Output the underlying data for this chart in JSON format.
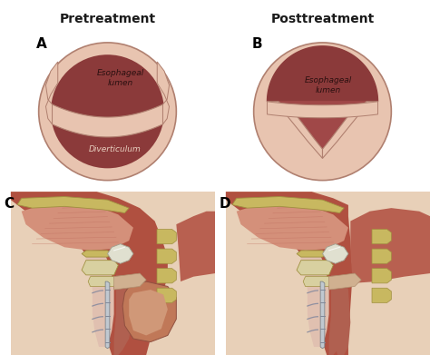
{
  "title_left": "Pretreatment",
  "title_right": "Posttreatment",
  "label_A": "A",
  "label_B": "B",
  "label_C": "C",
  "label_D": "D",
  "text_esophageal_lumen_A": "Esophageal\nlumen",
  "text_diverticulum": "Diverticulum",
  "text_esophageal_lumen_B": "Esophageal\nlumen",
  "bg_color": "#ffffff",
  "header_left_color": "#c8d8e0",
  "header_right_color": "#d8cc80",
  "header_text_color": "#1a1a1a",
  "outer_ring_color": "#e8c4b0",
  "outer_ring_edge": "#b08070",
  "inner_dark_color": "#8b3a3a",
  "fold_color": "#d4a090",
  "label_fontsize": 11,
  "header_fontsize": 10,
  "annotation_fontsize": 6.5
}
